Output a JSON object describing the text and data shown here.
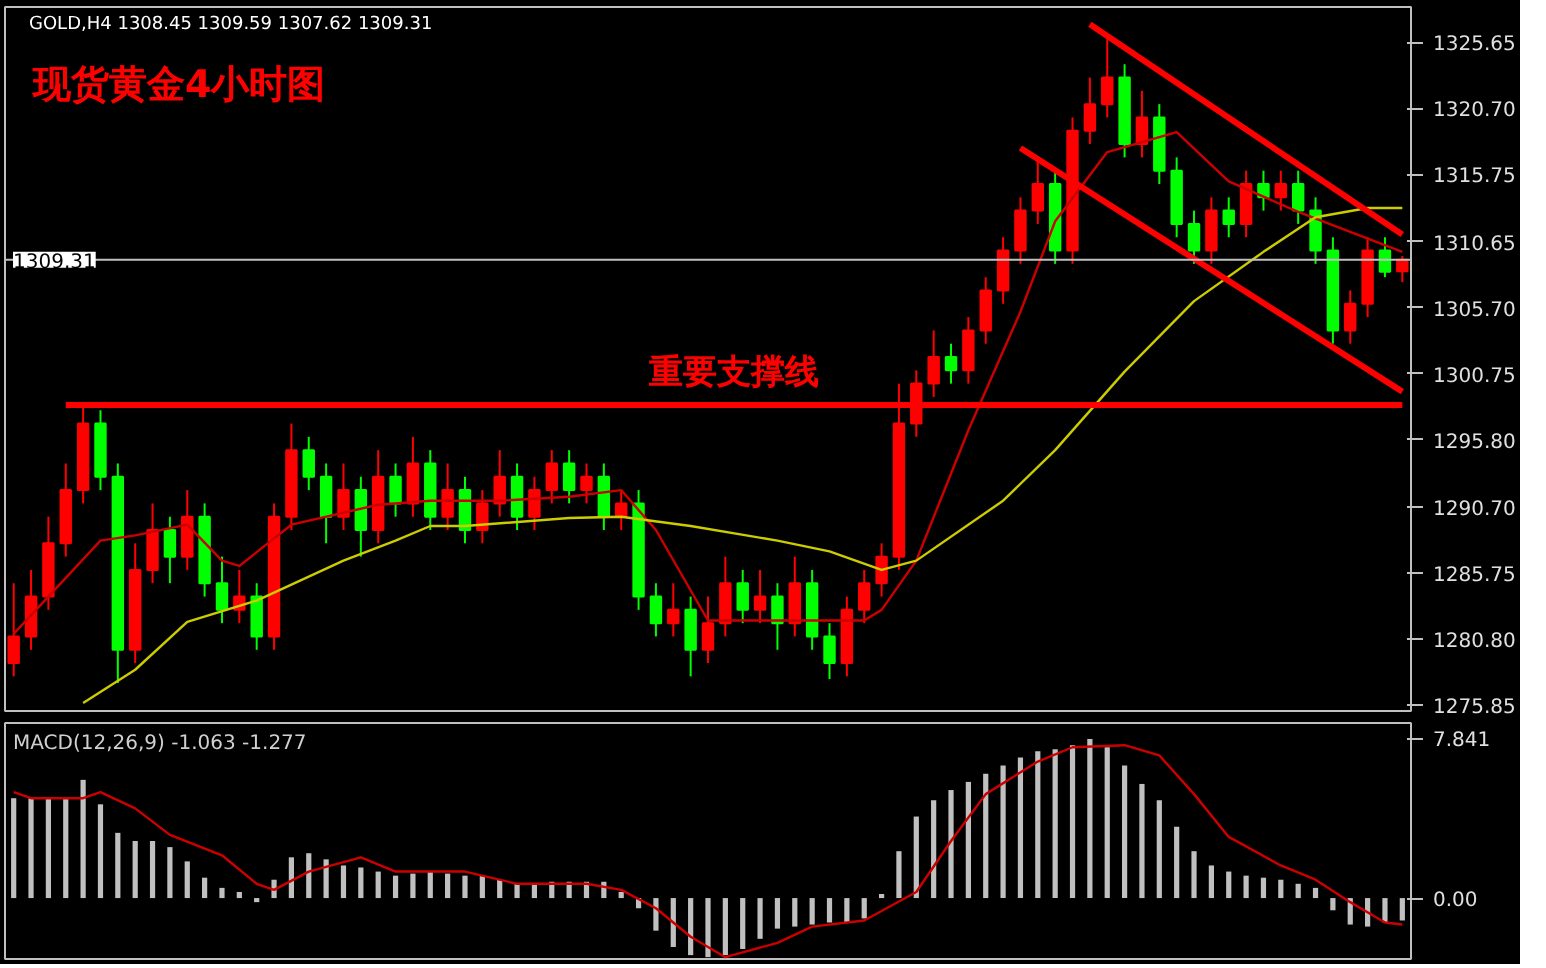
{
  "chart_data": [
    {
      "type": "candlestick",
      "title": "现货黄金4小时图",
      "subtitle": "GOLD,H4 1308.45 1309.59 1307.62 1309.31",
      "categories": [
        null,
        null,
        null,
        null,
        null,
        null,
        null,
        null,
        null,
        null,
        null,
        null,
        null,
        null,
        null,
        null,
        null,
        null,
        null,
        null,
        null,
        null,
        null,
        null,
        null,
        null,
        null,
        null,
        null,
        null,
        null,
        null,
        null,
        null,
        null,
        null,
        null,
        null,
        null,
        null,
        null,
        null,
        null,
        null,
        null,
        null,
        null,
        null,
        null,
        null,
        null,
        null,
        null,
        null,
        null,
        null,
        null,
        null,
        null,
        null,
        null,
        null,
        null,
        null,
        null,
        null,
        null,
        null,
        null,
        null,
        null,
        null,
        null,
        null,
        null,
        null,
        null,
        null,
        null,
        null,
        null
      ],
      "ohlc": [
        [
          1279,
          1285,
          1278,
          1281
        ],
        [
          1281,
          1286,
          1280,
          1284
        ],
        [
          1284,
          1290,
          1283,
          1288
        ],
        [
          1288,
          1294,
          1287,
          1292
        ],
        [
          1292,
          1298.3,
          1291,
          1297
        ],
        [
          1297,
          1298,
          1292,
          1293
        ],
        [
          1293,
          1294,
          1277.5,
          1280
        ],
        [
          1280,
          1288,
          1279,
          1286
        ],
        [
          1286,
          1291,
          1285,
          1289
        ],
        [
          1289,
          1290,
          1285,
          1287
        ],
        [
          1287,
          1292,
          1286,
          1290
        ],
        [
          1290,
          1291,
          1284,
          1285
        ],
        [
          1285,
          1287,
          1282,
          1283
        ],
        [
          1283,
          1286,
          1282,
          1284
        ],
        [
          1284,
          1285,
          1280,
          1281
        ],
        [
          1281,
          1291,
          1280,
          1290
        ],
        [
          1290,
          1297,
          1289,
          1295
        ],
        [
          1295,
          1296,
          1292,
          1293
        ],
        [
          1293,
          1294,
          1288,
          1290
        ],
        [
          1290,
          1294,
          1289,
          1292
        ],
        [
          1292,
          1293,
          1287,
          1289
        ],
        [
          1289,
          1295,
          1288,
          1293
        ],
        [
          1293,
          1294,
          1290,
          1291
        ],
        [
          1291,
          1296,
          1290,
          1294
        ],
        [
          1294,
          1295,
          1289,
          1290
        ],
        [
          1290,
          1294,
          1289,
          1292
        ],
        [
          1292,
          1293,
          1288,
          1289
        ],
        [
          1289,
          1292,
          1288,
          1291
        ],
        [
          1291,
          1295,
          1290,
          1293
        ],
        [
          1293,
          1294,
          1289,
          1290
        ],
        [
          1290,
          1293,
          1289,
          1292
        ],
        [
          1292,
          1295,
          1291,
          1294
        ],
        [
          1294,
          1295,
          1291,
          1292
        ],
        [
          1292,
          1294,
          1291,
          1293
        ],
        [
          1293,
          1294,
          1289,
          1290
        ],
        [
          1290,
          1292,
          1289,
          1291
        ],
        [
          1291,
          1292,
          1283,
          1284
        ],
        [
          1284,
          1285,
          1281,
          1282
        ],
        [
          1282,
          1285,
          1281,
          1283
        ],
        [
          1283,
          1284,
          1278,
          1280
        ],
        [
          1280,
          1284,
          1279,
          1282
        ],
        [
          1282,
          1287,
          1281,
          1285
        ],
        [
          1285,
          1286,
          1282,
          1283
        ],
        [
          1283,
          1286,
          1282,
          1284
        ],
        [
          1284,
          1285,
          1280,
          1282
        ],
        [
          1282,
          1287,
          1281,
          1285
        ],
        [
          1285,
          1286,
          1280,
          1281
        ],
        [
          1281,
          1282,
          1277.8,
          1279
        ],
        [
          1279,
          1284,
          1278,
          1283
        ],
        [
          1283,
          1286,
          1282,
          1285
        ],
        [
          1285,
          1288,
          1284,
          1287
        ],
        [
          1287,
          1300,
          1286,
          1297
        ],
        [
          1297,
          1301,
          1296,
          1300
        ],
        [
          1300,
          1304,
          1299,
          1302
        ],
        [
          1302,
          1303,
          1300,
          1301
        ],
        [
          1301,
          1305,
          1300,
          1304
        ],
        [
          1304,
          1308,
          1303,
          1307
        ],
        [
          1307,
          1311,
          1306,
          1310
        ],
        [
          1310,
          1314,
          1309,
          1313
        ],
        [
          1313,
          1317,
          1312,
          1315
        ],
        [
          1315,
          1316,
          1309,
          1310
        ],
        [
          1310,
          1320,
          1309,
          1319
        ],
        [
          1319,
          1323,
          1318,
          1321
        ],
        [
          1321,
          1326,
          1320,
          1323
        ],
        [
          1323,
          1324,
          1317,
          1318
        ],
        [
          1318,
          1322,
          1317,
          1320
        ],
        [
          1320,
          1321,
          1315,
          1316
        ],
        [
          1316,
          1317,
          1311,
          1312
        ],
        [
          1312,
          1313,
          1309,
          1310
        ],
        [
          1310,
          1314,
          1309,
          1313
        ],
        [
          1313,
          1314,
          1311,
          1312
        ],
        [
          1312,
          1316,
          1311,
          1315
        ],
        [
          1315,
          1316,
          1313,
          1314
        ],
        [
          1314,
          1316,
          1313,
          1315
        ],
        [
          1315,
          1316,
          1312,
          1313
        ],
        [
          1313,
          1314,
          1309,
          1310
        ],
        [
          1310,
          1311,
          1303,
          1304
        ],
        [
          1304,
          1307,
          1303,
          1306
        ],
        [
          1306,
          1311,
          1305,
          1310
        ],
        [
          1310,
          1311,
          1308,
          1308.4
        ],
        [
          1308.45,
          1309.59,
          1307.62,
          1309.31
        ]
      ],
      "colors": [
        "#ff0000",
        "#ff0000",
        "#ff0000",
        "#ff0000",
        "#ff0000",
        "#00ff00",
        "#00ff00",
        "#ff0000",
        "#ff0000",
        "#00ff00",
        "#ff0000",
        "#00ff00",
        "#00ff00",
        "#ff0000",
        "#00ff00",
        "#ff0000",
        "#ff0000",
        "#00ff00",
        "#00ff00",
        "#ff0000",
        "#00ff00",
        "#ff0000",
        "#00ff00",
        "#ff0000",
        "#00ff00",
        "#ff0000",
        "#00ff00",
        "#ff0000",
        "#ff0000",
        "#00ff00",
        "#ff0000",
        "#ff0000",
        "#00ff00",
        "#ff0000",
        "#00ff00",
        "#ff0000",
        "#00ff00",
        "#00ff00",
        "#ff0000",
        "#00ff00",
        "#ff0000",
        "#ff0000",
        "#00ff00",
        "#ff0000",
        "#00ff00",
        "#ff0000",
        "#00ff00",
        "#00ff00",
        "#ff0000",
        "#ff0000",
        "#ff0000",
        "#ff0000",
        "#ff0000",
        "#ff0000",
        "#00ff00",
        "#ff0000",
        "#ff0000",
        "#ff0000",
        "#ff0000",
        "#ff0000",
        "#00ff00",
        "#ff0000",
        "#ff0000",
        "#ff0000",
        "#00ff00",
        "#ff0000",
        "#00ff00",
        "#00ff00",
        "#00ff00",
        "#ff0000",
        "#00ff00",
        "#ff0000",
        "#00ff00",
        "#ff0000",
        "#00ff00",
        "#00ff00",
        "#00ff00",
        "#ff0000",
        "#ff0000",
        "#00ff00",
        "#ff0000"
      ],
      "series": [
        {
          "type": "line",
          "color": "#cc0000",
          "values": [
            1281.2,
            null,
            null,
            null,
            null,
            1288.2,
            null,
            1288.6,
            null,
            null,
            1289.4,
            null,
            1286.7,
            1286.3,
            null,
            null,
            1289.4,
            null,
            null,
            null,
            null,
            1290.9,
            null,
            null,
            1291.2,
            null,
            null,
            null,
            1291.2,
            null,
            null,
            null,
            1291.5,
            null,
            null,
            1292.0,
            null,
            1289.0,
            null,
            null,
            1282.2,
            null,
            null,
            null,
            1282.2,
            null,
            null,
            null,
            null,
            1282.2,
            1283.0,
            null,
            1286.7,
            null,
            null,
            1296.5,
            null,
            null,
            1305.4,
            null,
            1312.2,
            null,
            null,
            1317.4,
            null,
            null,
            null,
            1318.9,
            null,
            null,
            1315.2,
            null,
            null,
            null,
            1312.9,
            null,
            null,
            1311.4,
            null,
            null,
            1309.9
          ]
        },
        {
          "type": "line",
          "color": "#cccc00",
          "values": [
            null,
            null,
            null,
            null,
            1276.0,
            null,
            null,
            1278.5,
            null,
            null,
            1282.1,
            null,
            null,
            null,
            1283.7,
            null,
            null,
            null,
            null,
            1286.7,
            null,
            null,
            1288.2,
            null,
            1289.3,
            null,
            1289.3,
            null,
            null,
            null,
            null,
            null,
            1289.9,
            null,
            null,
            1290.0,
            null,
            null,
            null,
            1289.3,
            null,
            null,
            null,
            null,
            1288.2,
            null,
            null,
            1287.4,
            null,
            null,
            1286.0,
            null,
            1286.7,
            null,
            null,
            null,
            null,
            1291.2,
            null,
            null,
            1295.0,
            null,
            null,
            null,
            1300.9,
            null,
            null,
            null,
            1306.2,
            null,
            null,
            null,
            1309.9,
            null,
            null,
            1312.5,
            null,
            null,
            1313.2,
            null,
            1313.2
          ]
        },
        {
          "type": "line",
          "color": "#ff0000",
          "name": "重要支撑线",
          "values": [
            null,
            null,
            null,
            1298.4,
            null,
            null,
            null,
            null,
            null,
            null,
            null,
            null,
            null,
            null,
            null,
            null,
            null,
            null,
            null,
            null,
            null,
            null,
            null,
            null,
            null,
            null,
            null,
            null,
            null,
            null,
            null,
            null,
            null,
            null,
            null,
            null,
            null,
            null,
            null,
            null,
            null,
            null,
            null,
            null,
            null,
            null,
            null,
            null,
            null,
            null,
            null,
            null,
            null,
            null,
            null,
            null,
            null,
            null,
            null,
            null,
            null,
            null,
            null,
            null,
            null,
            null,
            null,
            null,
            null,
            null,
            null,
            null,
            null,
            null,
            null,
            null,
            null,
            null,
            null,
            null,
            1298.4
          ]
        },
        {
          "type": "line",
          "color": "#ff0000",
          "values": [
            null,
            null,
            null,
            null,
            null,
            null,
            null,
            null,
            null,
            null,
            null,
            null,
            null,
            null,
            null,
            null,
            null,
            null,
            null,
            null,
            null,
            null,
            null,
            null,
            null,
            null,
            null,
            null,
            null,
            null,
            null,
            null,
            null,
            null,
            null,
            null,
            null,
            null,
            null,
            null,
            null,
            null,
            null,
            null,
            null,
            null,
            null,
            null,
            null,
            null,
            null,
            null,
            null,
            null,
            null,
            null,
            null,
            null,
            null,
            null,
            null,
            null,
            1327.0,
            null,
            null,
            null,
            null,
            null,
            null,
            null,
            null,
            null,
            null,
            null,
            null,
            null,
            null,
            null,
            null,
            null,
            1311.2
          ]
        },
        {
          "type": "line",
          "color": "#ff0000",
          "values": [
            null,
            null,
            null,
            null,
            null,
            null,
            null,
            null,
            null,
            null,
            null,
            null,
            null,
            null,
            null,
            null,
            null,
            null,
            null,
            null,
            null,
            null,
            null,
            null,
            null,
            null,
            null,
            null,
            null,
            null,
            null,
            null,
            null,
            null,
            null,
            null,
            null,
            null,
            null,
            null,
            null,
            null,
            null,
            null,
            null,
            null,
            null,
            null,
            null,
            null,
            null,
            null,
            null,
            null,
            null,
            null,
            null,
            null,
            1317.7,
            null,
            null,
            null,
            null,
            null,
            null,
            null,
            null,
            null,
            null,
            null,
            null,
            null,
            null,
            null,
            null,
            null,
            null,
            null,
            null,
            null,
            1299.4
          ]
        }
      ],
      "ref_lines": [
        {
          "axis": "y",
          "value": 1309.31,
          "label": "1309.31",
          "color": "#c0c0c0"
        }
      ],
      "ylim": [
        1275.4,
        1328.3
      ],
      "yticks": [
        1325.65,
        {
          "value": 1320.7,
          "label": "1320.70"
        },
        1315.75,
        1310.65,
        {
          "value": 1305.7,
          "label": "1305.70"
        },
        1300.75,
        {
          "value": 1295.8,
          "label": "1295.80"
        },
        {
          "value": 1290.7,
          "label": "1290.70"
        },
        1285.75,
        {
          "value": 1280.8,
          "label": "1280.80"
        },
        1275.85
      ],
      "tick_labels": "y",
      "grid": false
    },
    {
      "type": "bar",
      "title": "MACD(12,26,9) -1.063 -1.277",
      "categories": [
        null,
        null,
        null,
        null,
        null,
        null,
        null,
        null,
        null,
        null,
        null,
        null,
        null,
        null,
        null,
        null,
        null,
        null,
        null,
        null,
        null,
        null,
        null,
        null,
        null,
        null,
        null,
        null,
        null,
        null,
        null,
        null,
        null,
        null,
        null,
        null,
        null,
        null,
        null,
        null,
        null,
        null,
        null,
        null,
        null,
        null,
        null,
        null,
        null,
        null,
        null,
        null,
        null,
        null,
        null,
        null,
        null,
        null,
        null,
        null,
        null,
        null,
        null,
        null,
        null,
        null,
        null,
        null,
        null,
        null,
        null,
        null,
        null,
        null,
        null,
        null,
        null,
        null,
        null,
        null,
        null
      ],
      "series": [
        {
          "type": "bar",
          "color": "#c0c0c0",
          "values": [
            4.9,
            4.9,
            4.9,
            4.9,
            5.8,
            4.6,
            3.2,
            2.8,
            2.8,
            2.5,
            1.8,
            1.0,
            0.5,
            0.3,
            -0.2,
            0.9,
            2.0,
            2.2,
            1.9,
            1.6,
            1.5,
            1.3,
            1.1,
            1.2,
            1.3,
            1.2,
            1.1,
            1.1,
            0.9,
            0.7,
            0.7,
            0.8,
            0.8,
            0.8,
            0.8,
            0.3,
            -0.5,
            -1.6,
            -2.4,
            -2.8,
            -2.9,
            -2.8,
            -2.5,
            -2.0,
            -1.5,
            -1.4,
            -1.3,
            -1.2,
            -1.2,
            -1.0,
            0.2,
            2.3,
            4.0,
            4.8,
            5.3,
            5.7,
            6.1,
            6.5,
            6.9,
            7.2,
            7.3,
            7.5,
            7.8,
            7.4,
            6.5,
            5.6,
            4.8,
            3.5,
            2.3,
            1.6,
            1.3,
            1.1,
            1.0,
            0.9,
            0.7,
            0.5,
            -0.6,
            -1.3,
            -1.4,
            -1.2,
            -1.1
          ]
        },
        {
          "type": "line",
          "color": "#cc0000",
          "values": [
            5.2,
            4.9,
            null,
            null,
            4.9,
            5.2,
            null,
            4.4,
            null,
            3.1,
            null,
            null,
            2.1,
            null,
            0.7,
            0.4,
            null,
            1.3,
            null,
            null,
            2.0,
            null,
            1.3,
            null,
            null,
            null,
            1.3,
            null,
            null,
            0.7,
            null,
            null,
            null,
            0.7,
            null,
            0.4,
            null,
            -0.5,
            null,
            -1.9,
            null,
            -2.9,
            null,
            null,
            -2.2,
            null,
            -1.4,
            null,
            null,
            -1.1,
            null,
            null,
            0.3,
            null,
            2.8,
            null,
            5.1,
            null,
            null,
            6.7,
            null,
            7.4,
            null,
            null,
            7.5,
            null,
            7.0,
            null,
            5.1,
            null,
            3.0,
            null,
            null,
            1.6,
            null,
            0.9,
            null,
            -0.2,
            null,
            -1.2,
            -1.3
          ]
        }
      ],
      "ylim": [
        -2.99,
        8.59
      ],
      "yticks": [
        7.841,
        {
          "value": 0,
          "label": "0.00"
        }
      ],
      "tick_labels": "y",
      "grid": false
    }
  ]
}
